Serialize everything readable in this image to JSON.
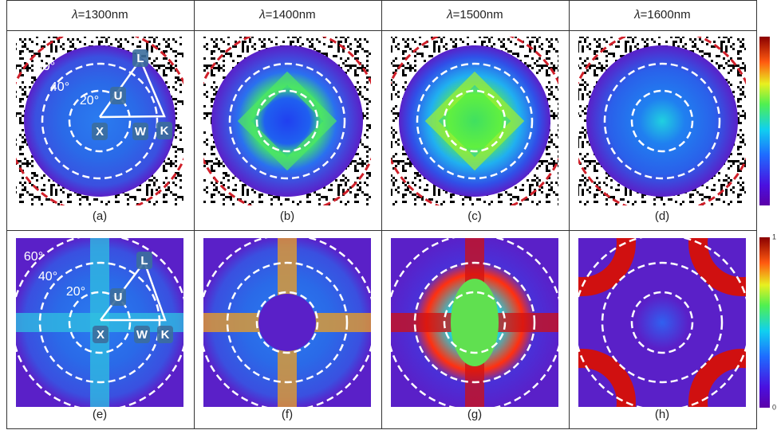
{
  "columns": [
    "𝜆=1300nm",
    "𝜆=1400nm",
    "𝜆=1500nm",
    "𝜆=1600nm"
  ],
  "panel_labels": [
    "(a)",
    "(b)",
    "(c)",
    "(d)",
    "(e)",
    "(f)",
    "(g)",
    "(h)"
  ],
  "angle_labels": [
    "60°",
    "40°",
    "20°"
  ],
  "points": [
    "L",
    "U",
    "X",
    "W",
    "K"
  ],
  "colorbar": {
    "top": "1",
    "bottom": "0"
  }
}
